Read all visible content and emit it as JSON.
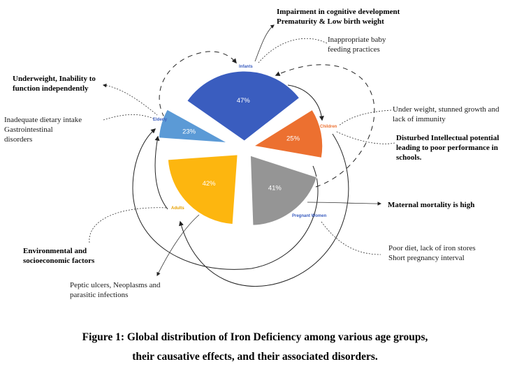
{
  "segments": [
    {
      "group": "Infants",
      "label": "47%",
      "value": 47,
      "color": "#3a5dbf"
    },
    {
      "group": "Children",
      "label": "25%",
      "value": 25,
      "color": "#ec7030"
    },
    {
      "group": "Pregnant Women",
      "label": "41%",
      "value": 41,
      "color": "#959595"
    },
    {
      "group": "Adults",
      "label": "42%",
      "value": 42,
      "color": "#fdb60f"
    },
    {
      "group": "Elderly",
      "label": "23%",
      "value": 23,
      "color": "#5b9ad6"
    }
  ],
  "groups": {
    "infants": {
      "label": "Infants",
      "color": "#3a5dbf"
    },
    "children": {
      "label": "Children",
      "color": "#ec7030"
    },
    "pregnant": {
      "label": "Pregnant Women",
      "color": "#3a5dbf"
    },
    "adults": {
      "label": "Adults",
      "color": "#fdb60f"
    },
    "elderly": {
      "label": "Elderly",
      "color": "#3a5dbf"
    }
  },
  "notes": {
    "infants_effect": [
      "Impairment in cognitive development",
      "Prematurity & Low birth weight"
    ],
    "infants_cause": [
      "Inappropriate baby",
      "feeding practices"
    ],
    "elderly_effect": [
      "Underweight, Inability to",
      "function independently"
    ],
    "elderly_cause": [
      "Inadequate dietary intake",
      "Gastrointestinal",
      "disorders"
    ],
    "children_cause": [
      "Under weight, stunned growth and",
      "lack of immunity"
    ],
    "children_effect": [
      "Disturbed Intellectual potential",
      "leading to poor performance in",
      "schools."
    ],
    "pregnant_effect": [
      "Maternal mortality is high"
    ],
    "pregnant_cause": [
      "Poor diet, lack of iron stores",
      "Short pregnancy interval"
    ],
    "adults_cause": [
      "Environmental and",
      "socioeconomic factors"
    ],
    "adults_effect": [
      "Peptic ulcers, Neoplasms and",
      "parasitic infections"
    ]
  },
  "caption": {
    "line1": "Figure 1: Global distribution of Iron Deficiency among various age groups,",
    "line2": "their causative effects, and their associated disorders."
  }
}
